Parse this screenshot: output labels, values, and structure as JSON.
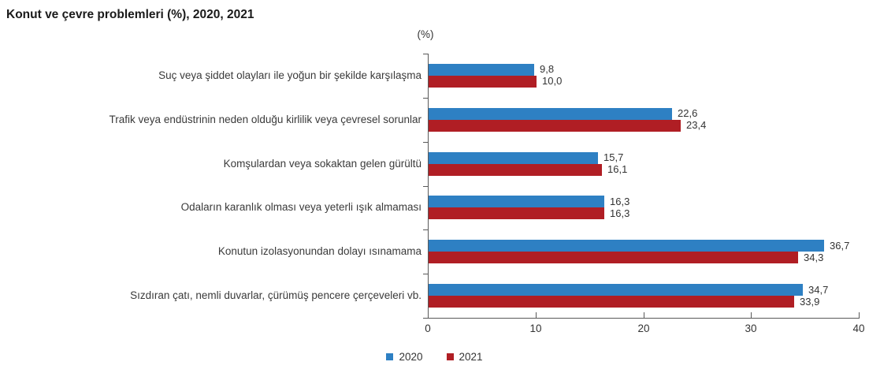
{
  "title": "Konut ve çevre problemleri (%), 2020, 2021",
  "axis_unit_label": "(%)",
  "chart_data": {
    "type": "bar",
    "orientation": "horizontal",
    "title": "Konut ve çevre problemleri (%), 2020, 2021",
    "xlabel": "(%)",
    "ylabel": "",
    "xlim": [
      0,
      40
    ],
    "x_ticks": [
      "0",
      "10",
      "20",
      "30",
      "40"
    ],
    "x_tick_values": [
      0,
      10,
      20,
      30,
      40
    ],
    "grid": "off",
    "legend_position": "bottom",
    "categories": [
      "Suç veya şiddet olayları ile yoğun bir şekilde karşılaşma",
      "Trafik veya endüstrinin neden olduğu kirlilik veya çevresel sorunlar",
      "Komşulardan veya sokaktan gelen gürültü",
      "Odaların karanlık olması veya yeterli ışık almaması",
      "Konutun izolasyonundan dolayı ısınamama",
      "Sızdıran çatı, nemli duvarlar, çürümüş pencere çerçeveleri vb."
    ],
    "series": [
      {
        "name": "2020",
        "color": "#2e80c3",
        "values": [
          9.8,
          22.6,
          15.7,
          16.3,
          36.7,
          34.7
        ],
        "labels": [
          "9,8",
          "22,6",
          "15,7",
          "16,3",
          "36,7",
          "34,7"
        ]
      },
      {
        "name": "2021",
        "color": "#b01e24",
        "values": [
          10.0,
          23.4,
          16.1,
          16.3,
          34.3,
          33.9
        ],
        "labels": [
          "10,0",
          "23,4",
          "16,1",
          "16,3",
          "34,3",
          "33,9"
        ]
      }
    ]
  },
  "colors": {
    "axis": "#595959",
    "text": "#333333",
    "series_2020": "#2e80c3",
    "series_2021": "#b01e24"
  }
}
